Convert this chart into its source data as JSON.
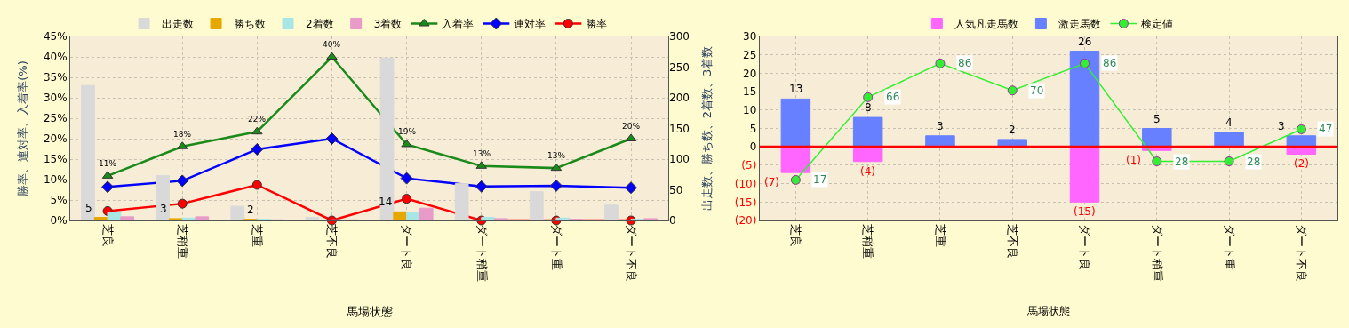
{
  "chart_data": [
    {
      "type": "bar",
      "categories": [
        "芝良",
        "芝稍重",
        "芝重",
        "芝不良",
        "ダート良",
        "ダート稍重",
        "ダート重",
        "ダート不良"
      ],
      "xlabel": "馬場状態",
      "ylabel": "勝率、連対率、入着率(%)",
      "y2label": "出走数、勝ち数、2着数、3着数",
      "ylim": [
        0,
        45
      ],
      "yticks": [
        {
          "value": 0,
          "label": "0%"
        },
        {
          "value": 5,
          "label": "5%"
        },
        {
          "value": 10,
          "label": "10%"
        },
        {
          "value": 15,
          "label": "15%"
        },
        {
          "value": 20,
          "label": "20%"
        },
        {
          "value": 25,
          "label": "25%"
        },
        {
          "value": 30,
          "label": "30%"
        },
        {
          "value": 35,
          "label": "35%"
        },
        {
          "value": 40,
          "label": "40%"
        },
        {
          "value": 45,
          "label": "45%"
        }
      ],
      "y2lim": [
        0,
        300
      ],
      "y2ticks": [
        0,
        50,
        100,
        150,
        200,
        250,
        300
      ],
      "grid": true,
      "legend": "top",
      "series": [
        {
          "name": "出走数",
          "color": "#d9d9d9",
          "axis": "y2",
          "values": [
            220,
            73,
            23,
            5,
            265,
            60,
            47,
            25
          ]
        },
        {
          "name": "勝ち数",
          "color": "#e6a800",
          "axis": "y2",
          "values": [
            5,
            3,
            2,
            0,
            14,
            0,
            0,
            0
          ],
          "value_labels": [
            "5",
            "3",
            "2",
            null,
            "14",
            null,
            null,
            null
          ]
        },
        {
          "name": "2着数",
          "color": "#a8e6e6",
          "axis": "y2",
          "values": [
            13,
            4,
            2,
            1,
            13,
            5,
            4,
            2
          ]
        },
        {
          "name": "3着数",
          "color": "#e89ac8",
          "axis": "y2",
          "values": [
            6,
            6,
            1,
            1,
            20,
            3,
            2,
            3
          ]
        },
        {
          "name": "入着率",
          "type": "line",
          "marker": "triangle",
          "color": "#1a8a1a",
          "values": [
            10.9,
            18.1,
            21.7,
            40,
            18.6,
            13.3,
            12.8,
            20
          ],
          "value_labels": [
            "11%",
            "18%",
            "22%",
            "40%",
            "19%",
            "13%",
            "13%",
            "20%"
          ]
        },
        {
          "name": "連対率",
          "type": "line",
          "marker": "diamond",
          "color": "#0000ff",
          "values": [
            8.2,
            9.7,
            17.4,
            20,
            10.3,
            8.3,
            8.5,
            8.0
          ]
        },
        {
          "name": "勝率",
          "type": "line",
          "marker": "circle",
          "color": "#ff0000",
          "values": [
            2.3,
            4.1,
            8.7,
            0,
            5.3,
            0,
            0,
            0
          ]
        }
      ]
    },
    {
      "type": "bar",
      "stacked": true,
      "categories": [
        "芝良",
        "芝稍重",
        "芝重",
        "芝不良",
        "ダート良",
        "ダート稍重",
        "ダート重",
        "ダート不良"
      ],
      "xlabel": "馬場状態",
      "ylim": [
        -20,
        30
      ],
      "yticks": [
        {
          "value": -20,
          "label": "(20)"
        },
        {
          "value": -15,
          "label": "(15)"
        },
        {
          "value": -10,
          "label": "(10)"
        },
        {
          "value": -5,
          "label": "(5)"
        },
        0,
        5,
        10,
        15,
        20,
        25,
        30
      ],
      "y2lim": [
        -7,
        102
      ],
      "grid": true,
      "legend": "top",
      "ref_lines": [
        {
          "axis": "y",
          "value": 0,
          "color": "#ff0000"
        }
      ],
      "series": [
        {
          "name": "人気凡走馬数",
          "color": "#ff66ff",
          "values": [
            -7,
            -4,
            0,
            0,
            -15,
            -1,
            0,
            -2
          ],
          "value_labels": [
            "(7)",
            "(4)",
            null,
            null,
            "(15)",
            "(1)",
            null,
            "(2)"
          ]
        },
        {
          "name": "激走馬数",
          "color": "#6680ff",
          "values": [
            13,
            8,
            3,
            2,
            26,
            5,
            4,
            3
          ],
          "value_labels": [
            "13",
            "8",
            "3",
            "2",
            "26",
            "5",
            "4",
            "3"
          ]
        },
        {
          "name": "検定値",
          "type": "line",
          "marker": "circle",
          "color": "#33ee33",
          "axis": "y2",
          "values": [
            17,
            66,
            86,
            70,
            86,
            28,
            28,
            47
          ],
          "value_labels": [
            "17",
            "66",
            "86",
            "70",
            "86",
            "28",
            "28",
            "47"
          ]
        }
      ]
    }
  ]
}
